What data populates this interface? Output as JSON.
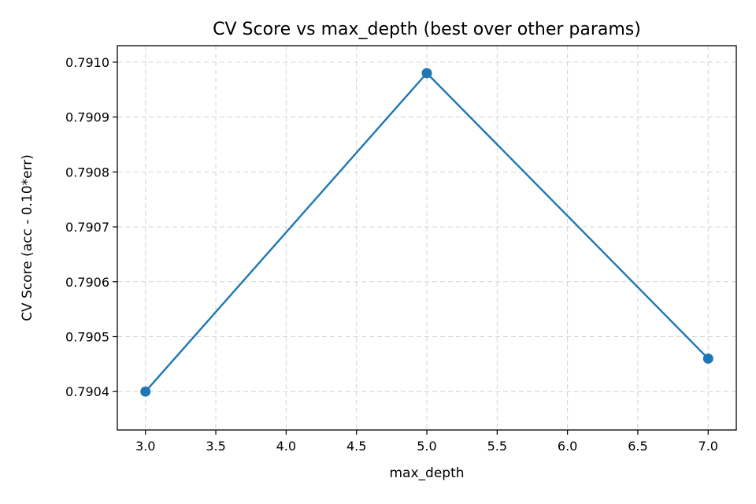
{
  "chart_data": {
    "type": "line",
    "title": "CV Score vs max_depth (best over other params)",
    "xlabel": "max_depth",
    "ylabel": "CV Score (acc - 0.10*err)",
    "xlim": [
      2.8,
      7.2
    ],
    "ylim": [
      0.79033,
      0.79103
    ],
    "xticks": [
      3.0,
      3.5,
      4.0,
      4.5,
      5.0,
      5.5,
      6.0,
      6.5,
      7.0
    ],
    "xtick_labels": [
      "3.0",
      "3.5",
      "4.0",
      "4.5",
      "5.0",
      "5.5",
      "6.0",
      "6.5",
      "7.0"
    ],
    "yticks": [
      0.7904,
      0.7905,
      0.7906,
      0.7907,
      0.7908,
      0.7909,
      0.791
    ],
    "ytick_labels": [
      "0.7904",
      "0.7905",
      "0.7906",
      "0.7907",
      "0.7908",
      "0.7909",
      "0.7910"
    ],
    "grid": true,
    "series": [
      {
        "x": [
          3,
          5,
          7
        ],
        "y": [
          0.7904,
          0.79098,
          0.79046
        ],
        "color": "#1f77b4",
        "marker": "circle"
      }
    ]
  }
}
